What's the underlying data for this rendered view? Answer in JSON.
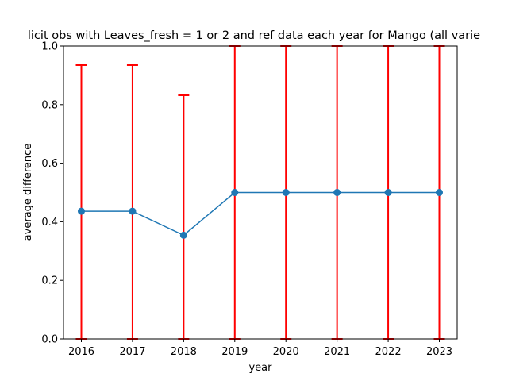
{
  "chart_data": {
    "type": "line",
    "title": "licit obs with Leaves_fresh = 1 or 2 and ref data each year for Mango (all varie",
    "xlabel": "year",
    "ylabel": "average difference",
    "categories": [
      "2016",
      "2017",
      "2018",
      "2019",
      "2020",
      "2021",
      "2022",
      "2023"
    ],
    "ylim": [
      0,
      1
    ],
    "yticks": [
      "0.0",
      "0.2",
      "0.4",
      "0.6",
      "0.8",
      "1.0"
    ],
    "series": [
      {
        "values": [
          0.436,
          0.436,
          0.354,
          0.5,
          0.5,
          0.5,
          0.5,
          0.5
        ],
        "error_upper": [
          0.935,
          0.935,
          0.832,
          1.0,
          1.0,
          1.0,
          1.0,
          1.0
        ],
        "error_lower": [
          0.0,
          0.0,
          0.0,
          0.0,
          0.0,
          0.0,
          0.0,
          0.0
        ],
        "color": "#1f77b4",
        "errorbar_color": "#ff0000"
      }
    ],
    "grid": false,
    "legend": "none"
  }
}
